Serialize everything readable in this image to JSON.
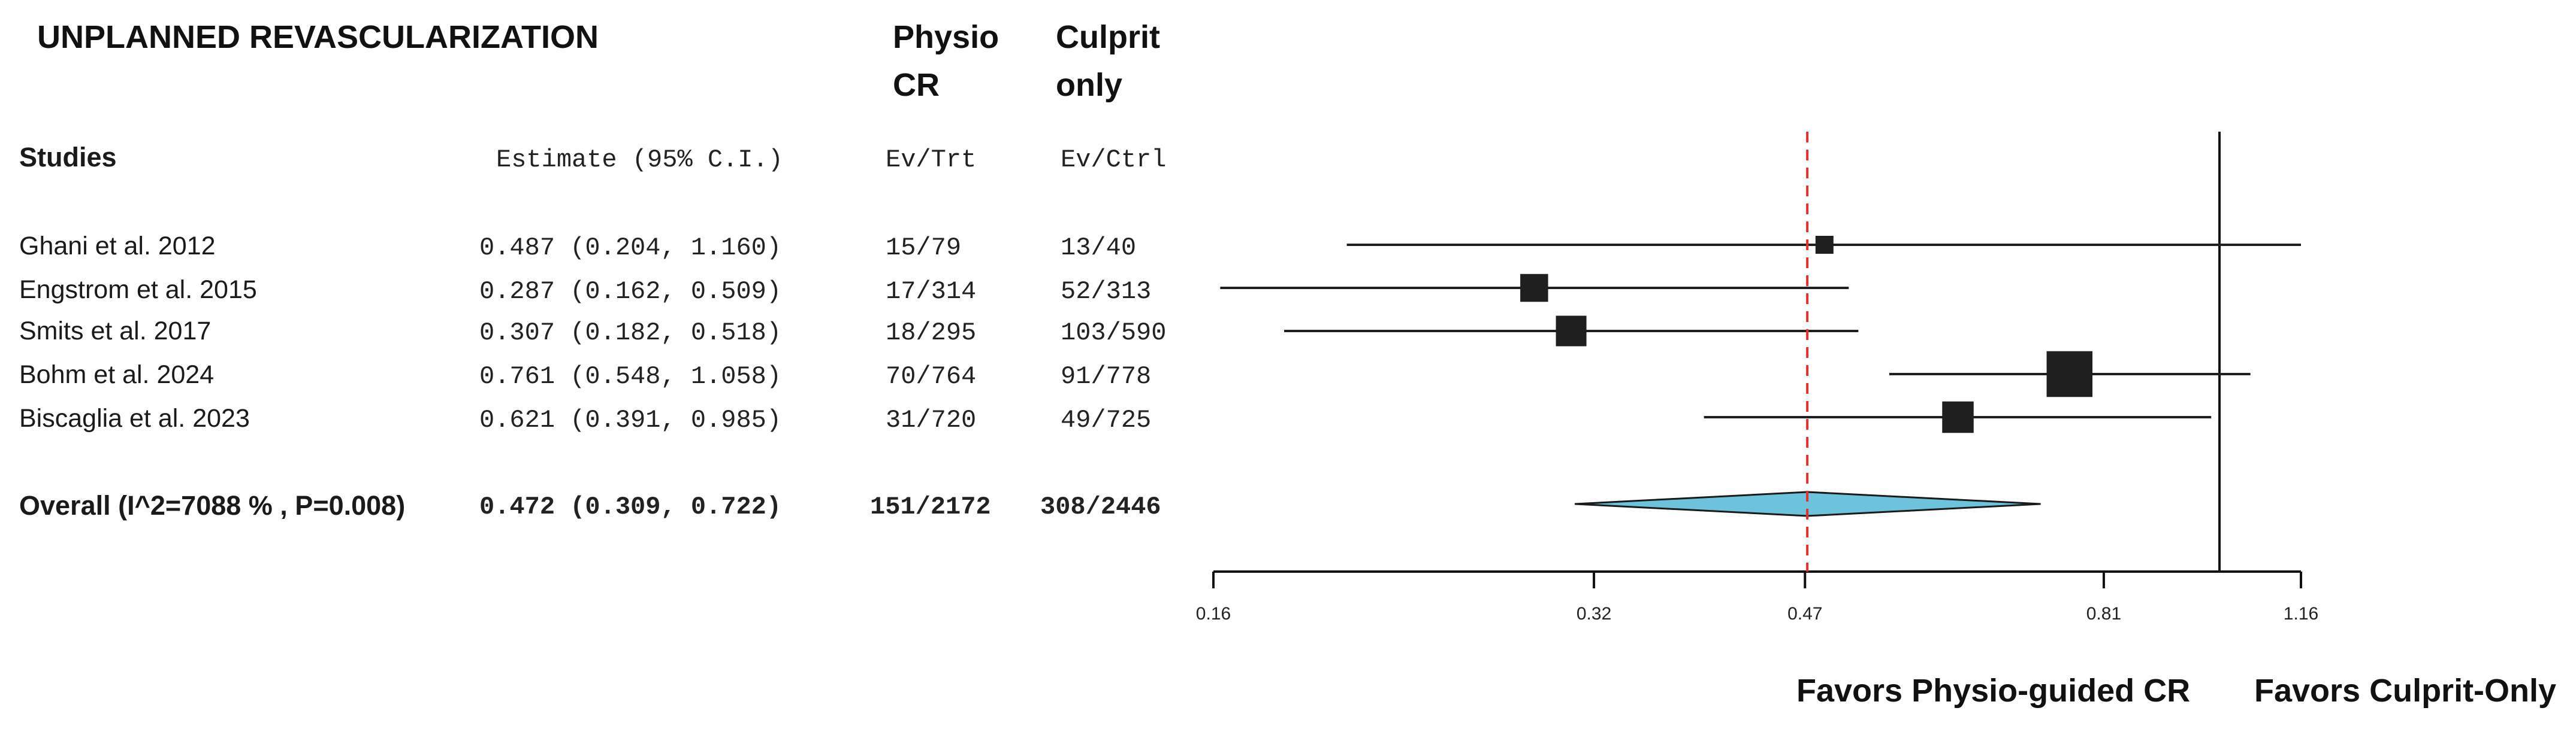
{
  "headers": {
    "title": "UNPLANNED REVASCULARIZATION",
    "group_trt_1": "Physio",
    "group_trt_2": "CR",
    "group_ctrl_1": "Culprit",
    "group_ctrl_2": "only",
    "studies": "Studies",
    "estimate": "Estimate (95% C.I.)",
    "ev_trt": "Ev/Trt",
    "ev_ctrl": "Ev/Ctrl"
  },
  "favors": {
    "left": "Favors Physio-guided CR",
    "right": "Favors Culprit-Only"
  },
  "chart_data": {
    "type": "forest",
    "x_scale": "log",
    "xlim": [
      0.16,
      1.16
    ],
    "x_ticks": [
      "0.16",
      "0.32",
      "0.47",
      "0.81",
      "1.16"
    ],
    "reference_line": 1.0,
    "summary_line": 0.472,
    "studies": [
      {
        "label": "Ghani et al. 2012",
        "estimate_text": "0.487 (0.204, 1.160)",
        "est": 0.487,
        "lo": 0.204,
        "hi": 1.16,
        "ev_trt": "15/79",
        "ev_ctrl": "13/40",
        "weight": 1.0
      },
      {
        "label": "Engstrom et al. 2015",
        "estimate_text": "0.287 (0.162, 0.509)",
        "est": 0.287,
        "lo": 0.162,
        "hi": 0.509,
        "ev_trt": "17/314",
        "ev_ctrl": "52/313",
        "weight": 1.55
      },
      {
        "label": "Smits et al. 2017",
        "estimate_text": "0.307 (0.182, 0.518)",
        "est": 0.307,
        "lo": 0.182,
        "hi": 0.518,
        "ev_trt": "18/295",
        "ev_ctrl": "103/590",
        "weight": 1.7
      },
      {
        "label": "Bohm et al. 2024",
        "estimate_text": "0.761 (0.548, 1.058)",
        "est": 0.761,
        "lo": 0.548,
        "hi": 1.058,
        "ev_trt": "70/764",
        "ev_ctrl": "91/778",
        "weight": 2.55
      },
      {
        "label": "Biscaglia et al. 2023",
        "estimate_text": "0.621 (0.391, 0.985)",
        "est": 0.621,
        "lo": 0.391,
        "hi": 0.985,
        "ev_trt": "31/720",
        "ev_ctrl": "49/725",
        "weight": 1.75
      }
    ],
    "overall": {
      "label": "Overall (I^2=7088 % , P=0.008)",
      "estimate_text": "0.472 (0.309, 0.722)",
      "est": 0.472,
      "lo": 0.309,
      "hi": 0.722,
      "ev_trt": "151/2172",
      "ev_ctrl": "308/2446"
    }
  },
  "colors": {
    "square": "#1f1f1f",
    "ci_line": "#1f1f1f",
    "diamond_fill": "#6ec3dc",
    "summary_dash": "#e03030",
    "axis": "#111111"
  }
}
